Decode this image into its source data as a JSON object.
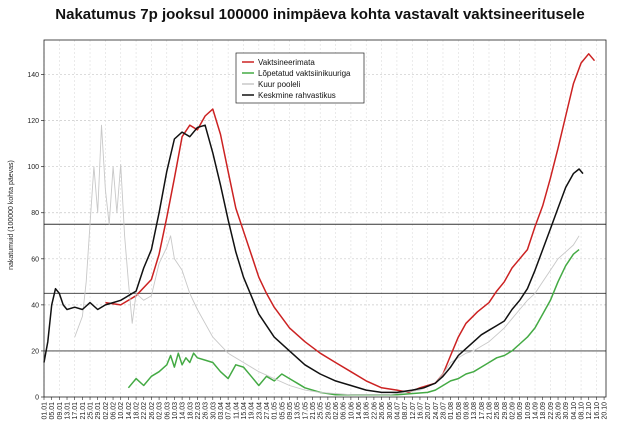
{
  "chart_data": {
    "type": "line",
    "title": "Nakatumus 7p jooksul 100000 inimpäeva kohta vastavalt vaktsineeritusele",
    "ylabel": "nakatumuid (100000 kohta päevas)",
    "xlabel": "",
    "ylim": [
      0,
      155
    ],
    "yticks": [
      0,
      20,
      40,
      60,
      80,
      100,
      120,
      140
    ],
    "grid": "horizontal-dashed",
    "legend_position": "top-center",
    "reference_lines": [
      20,
      45,
      75
    ],
    "x_tick_labels": [
      "01.01",
      "05.01",
      "09.01",
      "13.01",
      "17.01",
      "21.01",
      "25.01",
      "29.01",
      "02.02",
      "06.02",
      "10.02",
      "14.02",
      "18.02",
      "22.02",
      "26.02",
      "02.03",
      "06.03",
      "10.03",
      "14.03",
      "18.03",
      "22.03",
      "26.03",
      "30.03",
      "03.04",
      "07.04",
      "11.04",
      "15.04",
      "19.04",
      "23.04",
      "27.04",
      "01.05",
      "05.05",
      "09.05",
      "13.05",
      "17.05",
      "21.05",
      "25.05",
      "29.05",
      "02.06",
      "06.06",
      "10.06",
      "14.06",
      "18.06",
      "22.06",
      "26.06",
      "30.06",
      "04.07",
      "08.07",
      "12.07",
      "16.07",
      "20.07",
      "24.07",
      "28.07",
      "01.08",
      "05.08",
      "09.08",
      "13.08",
      "17.08",
      "21.08",
      "25.08",
      "29.08",
      "02.09",
      "06.09",
      "10.09",
      "14.09",
      "18.09",
      "22.09",
      "26.09",
      "30.09",
      "04.10",
      "08.10",
      "12.10",
      "16.10",
      "20.10"
    ],
    "x_day_range": [
      0,
      293
    ],
    "series": [
      {
        "name": "Vaktsineerimata",
        "color": "#cc2222",
        "points": [
          [
            32,
            41
          ],
          [
            40,
            40
          ],
          [
            48,
            44
          ],
          [
            56,
            51
          ],
          [
            60,
            62
          ],
          [
            64,
            78
          ],
          [
            68,
            95
          ],
          [
            72,
            113
          ],
          [
            76,
            118
          ],
          [
            80,
            116
          ],
          [
            84,
            122
          ],
          [
            88,
            125
          ],
          [
            92,
            114
          ],
          [
            96,
            98
          ],
          [
            100,
            82
          ],
          [
            104,
            72
          ],
          [
            108,
            62
          ],
          [
            112,
            52
          ],
          [
            116,
            45
          ],
          [
            120,
            39
          ],
          [
            128,
            30
          ],
          [
            136,
            24
          ],
          [
            144,
            19
          ],
          [
            152,
            15
          ],
          [
            160,
            11
          ],
          [
            168,
            7
          ],
          [
            176,
            4
          ],
          [
            184,
            3
          ],
          [
            190,
            2
          ],
          [
            196,
            4
          ],
          [
            204,
            6
          ],
          [
            208,
            10
          ],
          [
            212,
            18
          ],
          [
            216,
            26
          ],
          [
            220,
            32
          ],
          [
            226,
            37
          ],
          [
            232,
            41
          ],
          [
            236,
            46
          ],
          [
            240,
            50
          ],
          [
            244,
            56
          ],
          [
            248,
            60
          ],
          [
            252,
            64
          ],
          [
            256,
            74
          ],
          [
            260,
            83
          ],
          [
            264,
            95
          ],
          [
            268,
            108
          ],
          [
            272,
            122
          ],
          [
            276,
            136
          ],
          [
            280,
            145
          ],
          [
            284,
            149
          ],
          [
            287,
            146
          ]
        ]
      },
      {
        "name": "Lõpetatud vaktsiinikuuriga",
        "color": "#44aa44",
        "points": [
          [
            44,
            4
          ],
          [
            48,
            8
          ],
          [
            52,
            5
          ],
          [
            56,
            9
          ],
          [
            60,
            11
          ],
          [
            64,
            14
          ],
          [
            66,
            18
          ],
          [
            68,
            13
          ],
          [
            70,
            19
          ],
          [
            72,
            14
          ],
          [
            74,
            17
          ],
          [
            76,
            15
          ],
          [
            78,
            19
          ],
          [
            80,
            17
          ],
          [
            84,
            16
          ],
          [
            88,
            15
          ],
          [
            92,
            11
          ],
          [
            96,
            8
          ],
          [
            100,
            14
          ],
          [
            104,
            13
          ],
          [
            108,
            9
          ],
          [
            112,
            5
          ],
          [
            116,
            9
          ],
          [
            120,
            7
          ],
          [
            124,
            10
          ],
          [
            128,
            8
          ],
          [
            132,
            6
          ],
          [
            136,
            4
          ],
          [
            144,
            2
          ],
          [
            152,
            1
          ],
          [
            160,
            1
          ],
          [
            184,
            1
          ],
          [
            200,
            2
          ],
          [
            204,
            3
          ],
          [
            208,
            5
          ],
          [
            212,
            7
          ],
          [
            216,
            8
          ],
          [
            220,
            10
          ],
          [
            224,
            11
          ],
          [
            228,
            13
          ],
          [
            232,
            15
          ],
          [
            236,
            17
          ],
          [
            240,
            18
          ],
          [
            244,
            20
          ],
          [
            248,
            23
          ],
          [
            252,
            26
          ],
          [
            256,
            30
          ],
          [
            260,
            36
          ],
          [
            264,
            42
          ],
          [
            268,
            50
          ],
          [
            272,
            57
          ],
          [
            276,
            62
          ],
          [
            279,
            64
          ]
        ]
      },
      {
        "name": "Kuur pooleli",
        "color": "#c8c8c8",
        "points": [
          [
            16,
            26
          ],
          [
            20,
            35
          ],
          [
            22,
            50
          ],
          [
            24,
            75
          ],
          [
            26,
            100
          ],
          [
            28,
            80
          ],
          [
            30,
            118
          ],
          [
            32,
            90
          ],
          [
            34,
            75
          ],
          [
            36,
            100
          ],
          [
            38,
            80
          ],
          [
            40,
            101
          ],
          [
            42,
            70
          ],
          [
            44,
            50
          ],
          [
            46,
            32
          ],
          [
            48,
            45
          ],
          [
            52,
            42
          ],
          [
            56,
            44
          ],
          [
            60,
            58
          ],
          [
            64,
            65
          ],
          [
            66,
            70
          ],
          [
            68,
            60
          ],
          [
            72,
            55
          ],
          [
            76,
            45
          ],
          [
            80,
            38
          ],
          [
            84,
            32
          ],
          [
            88,
            26
          ],
          [
            96,
            19
          ],
          [
            104,
            15
          ],
          [
            112,
            11
          ],
          [
            120,
            8
          ],
          [
            128,
            5
          ],
          [
            136,
            3
          ],
          [
            144,
            2
          ],
          [
            160,
            1
          ],
          [
            180,
            1
          ],
          [
            196,
            3
          ],
          [
            204,
            6
          ],
          [
            208,
            10
          ],
          [
            212,
            15
          ],
          [
            216,
            17
          ],
          [
            220,
            19
          ],
          [
            224,
            20
          ],
          [
            228,
            22
          ],
          [
            232,
            24
          ],
          [
            236,
            27
          ],
          [
            240,
            30
          ],
          [
            244,
            34
          ],
          [
            248,
            38
          ],
          [
            252,
            42
          ],
          [
            256,
            45
          ],
          [
            260,
            50
          ],
          [
            264,
            55
          ],
          [
            268,
            60
          ],
          [
            272,
            63
          ],
          [
            276,
            66
          ],
          [
            279,
            70
          ]
        ]
      },
      {
        "name": "Keskmine rahvastikus",
        "color": "#111111",
        "points": [
          [
            0,
            15
          ],
          [
            2,
            24
          ],
          [
            4,
            40
          ],
          [
            6,
            47
          ],
          [
            8,
            45
          ],
          [
            10,
            40
          ],
          [
            12,
            38
          ],
          [
            16,
            39
          ],
          [
            20,
            38
          ],
          [
            24,
            41
          ],
          [
            28,
            38
          ],
          [
            32,
            40
          ],
          [
            36,
            41
          ],
          [
            40,
            42
          ],
          [
            44,
            44
          ],
          [
            48,
            46
          ],
          [
            52,
            56
          ],
          [
            56,
            64
          ],
          [
            60,
            80
          ],
          [
            64,
            98
          ],
          [
            68,
            112
          ],
          [
            72,
            115
          ],
          [
            76,
            113
          ],
          [
            80,
            117
          ],
          [
            84,
            118
          ],
          [
            88,
            106
          ],
          [
            92,
            92
          ],
          [
            96,
            77
          ],
          [
            100,
            63
          ],
          [
            104,
            52
          ],
          [
            108,
            44
          ],
          [
            112,
            36
          ],
          [
            116,
            31
          ],
          [
            120,
            26
          ],
          [
            128,
            20
          ],
          [
            136,
            14
          ],
          [
            144,
            10
          ],
          [
            152,
            7
          ],
          [
            160,
            5
          ],
          [
            168,
            3
          ],
          [
            176,
            2
          ],
          [
            184,
            2
          ],
          [
            192,
            3
          ],
          [
            198,
            4
          ],
          [
            204,
            6
          ],
          [
            208,
            9
          ],
          [
            212,
            13
          ],
          [
            216,
            18
          ],
          [
            220,
            21
          ],
          [
            224,
            24
          ],
          [
            228,
            27
          ],
          [
            232,
            29
          ],
          [
            236,
            31
          ],
          [
            240,
            33
          ],
          [
            244,
            38
          ],
          [
            248,
            42
          ],
          [
            252,
            47
          ],
          [
            256,
            55
          ],
          [
            260,
            64
          ],
          [
            264,
            73
          ],
          [
            268,
            82
          ],
          [
            272,
            91
          ],
          [
            276,
            97
          ],
          [
            279,
            99
          ],
          [
            281,
            97
          ]
        ]
      }
    ]
  }
}
